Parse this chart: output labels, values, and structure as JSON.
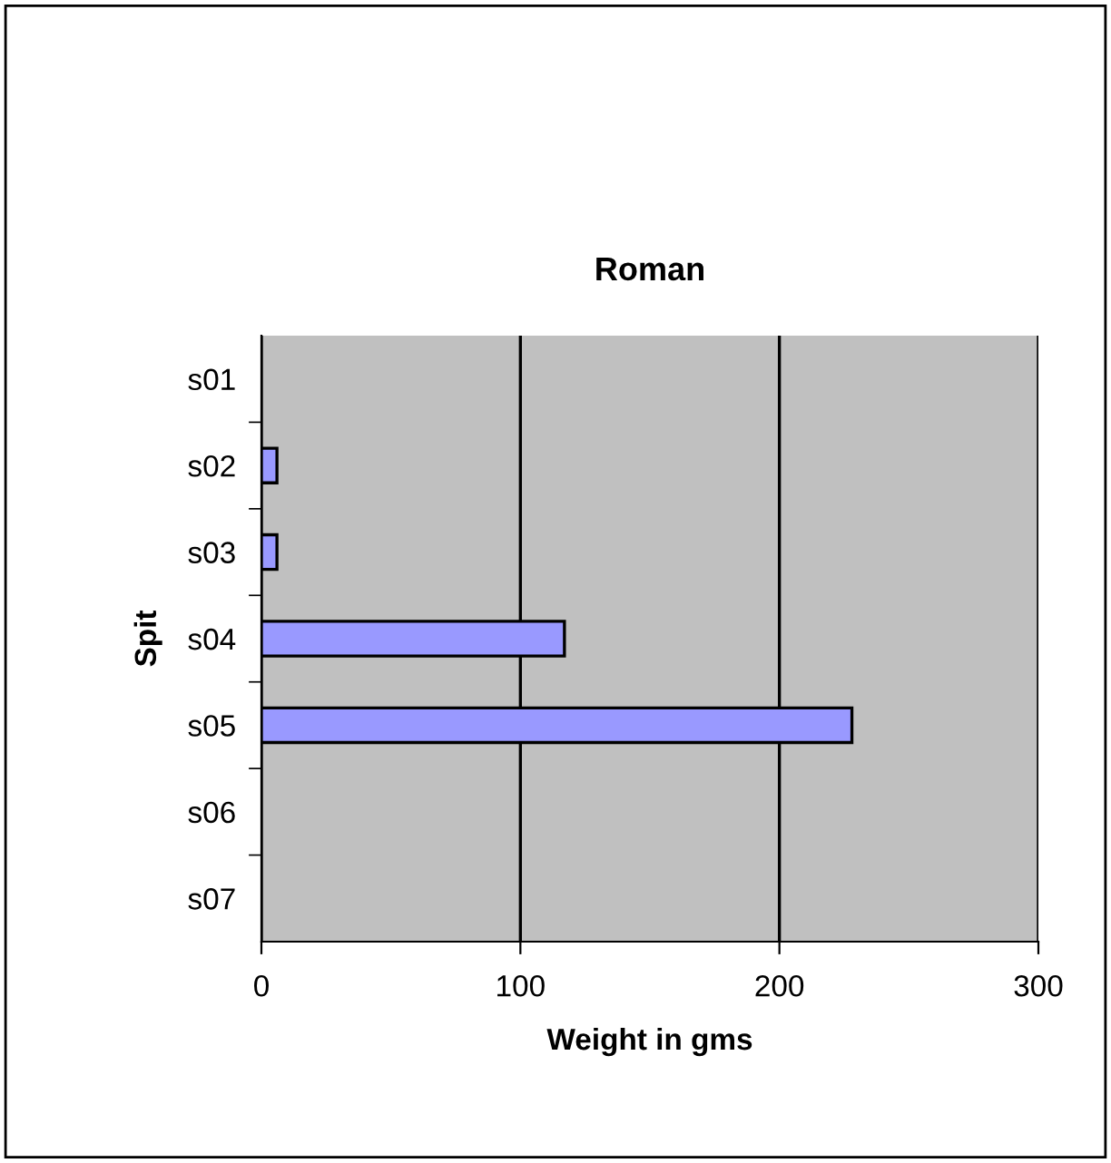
{
  "chart_data": {
    "type": "bar",
    "orientation": "horizontal",
    "title": "Roman",
    "xlabel": "Weight in gms",
    "ylabel": "Spit",
    "categories": [
      "s01",
      "s02",
      "s03",
      "s04",
      "s05",
      "s06",
      "s07"
    ],
    "values": [
      null,
      6,
      6,
      117,
      228,
      null,
      null
    ],
    "color": "#9999ff",
    "xlim": [
      0,
      300
    ],
    "xticks": [
      0,
      100,
      200,
      300
    ],
    "grid": "x",
    "legend": false
  }
}
